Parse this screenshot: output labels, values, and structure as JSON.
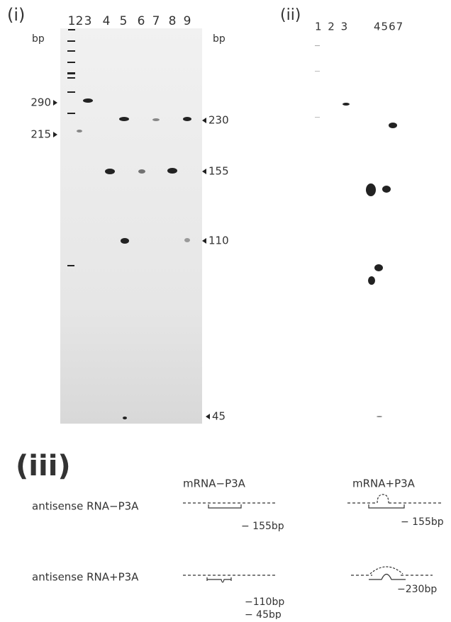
{
  "panel_i": {
    "label": "(i)",
    "lanes": [
      "1",
      "2",
      "3",
      "4",
      "5",
      "6",
      "7",
      "8",
      "9"
    ],
    "unit_left": "bp",
    "unit_right": "bp",
    "left_markers": [
      "290",
      "215"
    ],
    "right_markers": [
      "230",
      "155",
      "110",
      "45"
    ]
  },
  "panel_ii": {
    "label": "(ii)",
    "lanes_a": "1 2 3",
    "lanes_b": "4567"
  },
  "panel_iii": {
    "label": "(iii)",
    "col_headers": [
      "mRNA−P3A",
      "mRNA+P3A"
    ],
    "row_labels": [
      "antisense RNA−P3A",
      "antisense RNA+P3A"
    ],
    "annotations": [
      "− 155bp",
      "− 155bp",
      "−110bp",
      "− 45bp",
      "−230bp"
    ]
  }
}
